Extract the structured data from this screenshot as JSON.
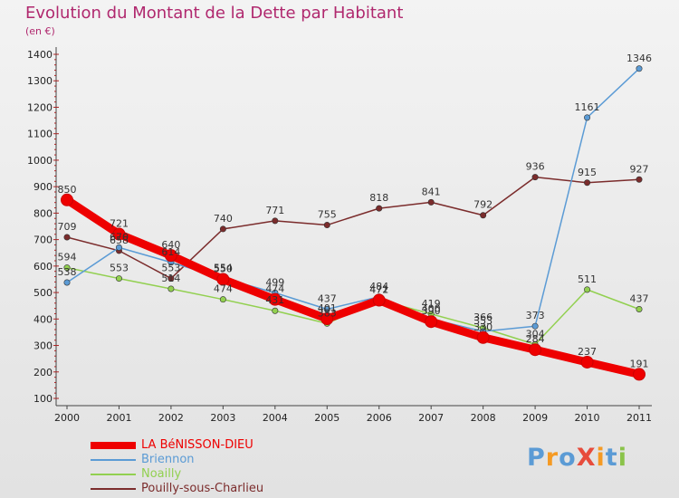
{
  "chart_data": {
    "type": "line",
    "title": "Evolution du Montant de la Dette par Habitant",
    "subtitle": "(en €)",
    "x": [
      "2000",
      "2001",
      "2002",
      "2003",
      "2004",
      "2005",
      "2006",
      "2007",
      "2008",
      "2009",
      "2010",
      "2011"
    ],
    "ylim": [
      100,
      1400
    ],
    "yticks": [
      100,
      200,
      300,
      400,
      500,
      600,
      700,
      800,
      900,
      1000,
      1100,
      1200,
      1300,
      1400
    ],
    "grid": false,
    "legend_position": "bottom-left",
    "series": [
      {
        "name": "LA BéNISSON-DIEU",
        "color": "#ee0000",
        "values": [
          850,
          721,
          640,
          550,
          474,
          401,
          471,
          390,
          330,
          284,
          237,
          191
        ]
      },
      {
        "name": "Briennon",
        "color": "#5b9bd5",
        "values": [
          538,
          670,
          614,
          554,
          499,
          437,
          484,
          400,
          353,
          373,
          1161,
          1346
        ]
      },
      {
        "name": "Noailly",
        "color": "#92d050",
        "values": [
          594,
          553,
          514,
          474,
          431,
          383,
          472,
          419,
          366,
          304,
          511,
          437
        ]
      },
      {
        "name": "Pouilly-sous-Charlieu",
        "color": "#7b2c2c",
        "values": [
          709,
          658,
          553,
          740,
          771,
          755,
          818,
          841,
          792,
          936,
          915,
          927
        ]
      }
    ]
  },
  "logo": {
    "text": "ProXiti",
    "colors": [
      "#5b9bd5",
      "#f59a23",
      "#5b9bd5",
      "#e74c3c",
      "#f59a23",
      "#5b9bd5",
      "#8bc34a"
    ]
  }
}
